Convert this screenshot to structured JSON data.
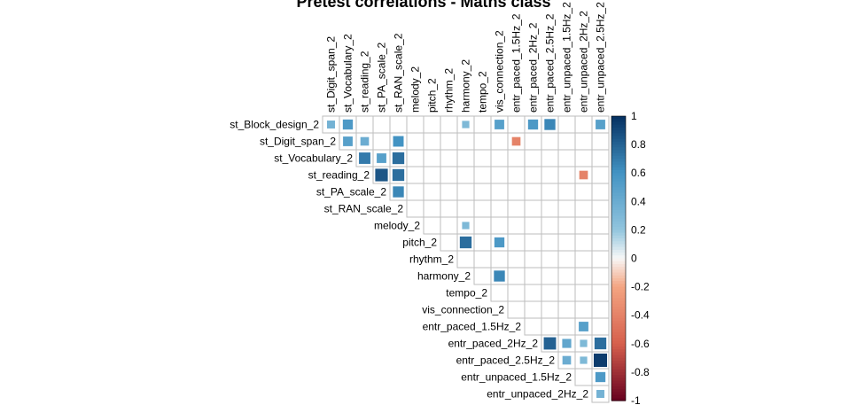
{
  "chart_data": {
    "type": "heatmap",
    "title": "Pretest correlations - Maths class",
    "variables": [
      "st_Block_design_2",
      "st_Digit_span_2",
      "st_Vocabulary_2",
      "st_reading_2",
      "st_PA_scale_2",
      "st_RAN_scale_2",
      "melody_2",
      "pitch_2",
      "rhythm_2",
      "harmony_2",
      "tempo_2",
      "vis_connection_2",
      "entr_paced_1.5Hz_2",
      "entr_paced_2Hz_2",
      "entr_paced_2.5Hz_2",
      "entr_unpaced_1.5Hz_2",
      "entr_unpaced_2Hz_2",
      "entr_unpaced_2.5Hz_2"
    ],
    "matrix_type": "upper",
    "cells": [
      {
        "row": "st_Block_design_2",
        "col": "st_Digit_span_2",
        "value": 0.35
      },
      {
        "row": "st_Block_design_2",
        "col": "st_Vocabulary_2",
        "value": 0.55
      },
      {
        "row": "st_Block_design_2",
        "col": "harmony_2",
        "value": 0.3
      },
      {
        "row": "st_Block_design_2",
        "col": "vis_connection_2",
        "value": 0.5
      },
      {
        "row": "st_Block_design_2",
        "col": "entr_paced_2Hz_2",
        "value": 0.55
      },
      {
        "row": "st_Block_design_2",
        "col": "entr_paced_2.5Hz_2",
        "value": 0.65
      },
      {
        "row": "st_Block_design_2",
        "col": "entr_unpaced_2.5Hz_2",
        "value": 0.5
      },
      {
        "row": "st_Digit_span_2",
        "col": "st_Vocabulary_2",
        "value": 0.5
      },
      {
        "row": "st_Digit_span_2",
        "col": "st_reading_2",
        "value": 0.4
      },
      {
        "row": "st_Digit_span_2",
        "col": "st_RAN_scale_2",
        "value": 0.6
      },
      {
        "row": "st_Digit_span_2",
        "col": "entr_paced_1.5Hz_2",
        "value": -0.4
      },
      {
        "row": "st_Vocabulary_2",
        "col": "st_reading_2",
        "value": 0.7
      },
      {
        "row": "st_Vocabulary_2",
        "col": "st_PA_scale_2",
        "value": 0.5
      },
      {
        "row": "st_Vocabulary_2",
        "col": "st_RAN_scale_2",
        "value": 0.75
      },
      {
        "row": "st_reading_2",
        "col": "st_PA_scale_2",
        "value": 0.85
      },
      {
        "row": "st_reading_2",
        "col": "st_RAN_scale_2",
        "value": 0.75
      },
      {
        "row": "st_reading_2",
        "col": "entr_unpaced_2Hz_2",
        "value": -0.4
      },
      {
        "row": "st_PA_scale_2",
        "col": "st_RAN_scale_2",
        "value": 0.65
      },
      {
        "row": "melody_2",
        "col": "harmony_2",
        "value": 0.3
      },
      {
        "row": "pitch_2",
        "col": "harmony_2",
        "value": 0.75
      },
      {
        "row": "pitch_2",
        "col": "vis_connection_2",
        "value": 0.55
      },
      {
        "row": "harmony_2",
        "col": "vis_connection_2",
        "value": 0.65
      },
      {
        "row": "entr_paced_1.5Hz_2",
        "col": "entr_unpaced_2Hz_2",
        "value": 0.5
      },
      {
        "row": "entr_paced_2Hz_2",
        "col": "entr_paced_2.5Hz_2",
        "value": 0.8
      },
      {
        "row": "entr_paced_2Hz_2",
        "col": "entr_unpaced_1.5Hz_2",
        "value": 0.45
      },
      {
        "row": "entr_paced_2Hz_2",
        "col": "entr_unpaced_2Hz_2",
        "value": 0.3
      },
      {
        "row": "entr_paced_2Hz_2",
        "col": "entr_unpaced_2.5Hz_2",
        "value": 0.75
      },
      {
        "row": "entr_paced_2.5Hz_2",
        "col": "entr_unpaced_1.5Hz_2",
        "value": 0.4
      },
      {
        "row": "entr_paced_2.5Hz_2",
        "col": "entr_unpaced_2Hz_2",
        "value": 0.3
      },
      {
        "row": "entr_paced_2.5Hz_2",
        "col": "entr_unpaced_2.5Hz_2",
        "value": 0.95
      },
      {
        "row": "entr_unpaced_1.5Hz_2",
        "col": "entr_unpaced_2.5Hz_2",
        "value": 0.55
      },
      {
        "row": "entr_unpaced_2Hz_2",
        "col": "entr_unpaced_2.5Hz_2",
        "value": 0.35
      }
    ],
    "colorbar": {
      "range": [
        -1,
        1
      ],
      "ticks": [
        "1",
        "0.8",
        "0.6",
        "0.4",
        "0.2",
        "0",
        "-0.2",
        "-0.4",
        "-0.6",
        "-0.8",
        "-1"
      ],
      "placement": "right"
    },
    "colors": {
      "neg_strong": "#67001F",
      "neg_mid": "#D6604D",
      "neg_light": "#F4A582",
      "neutral": "#F7F7F7",
      "pos_light": "#92C5DE",
      "pos_mid": "#4393C3",
      "pos_strong": "#053061",
      "grid": "#BEBEBE"
    }
  }
}
